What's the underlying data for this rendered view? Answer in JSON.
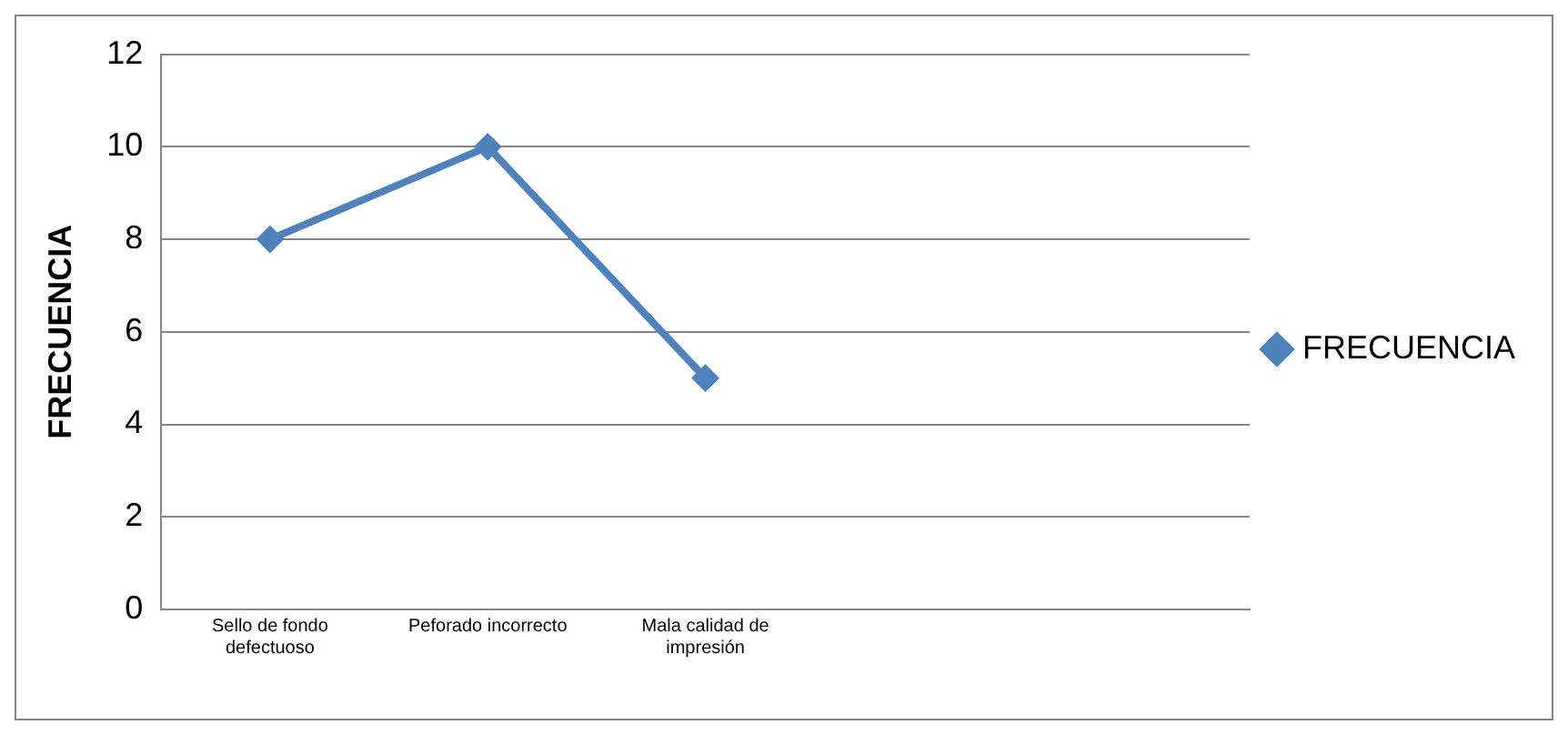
{
  "chart_data": {
    "type": "line",
    "ylabel": "FRECUENCIA",
    "categories": [
      "Sello de fondo defectuoso",
      "Peforado incorrecto",
      "Mala calidad de impresión",
      null,
      null
    ],
    "series": [
      {
        "name": "FRECUENCIA",
        "color": "#4f81bd",
        "values": [
          8,
          10,
          5,
          null,
          null
        ]
      }
    ],
    "ylim": [
      0,
      12
    ],
    "yticks": [
      0,
      2,
      4,
      6,
      8,
      10,
      12
    ],
    "grid": "y",
    "legend": "right",
    "marker": "diamond",
    "line_style": "solid"
  }
}
